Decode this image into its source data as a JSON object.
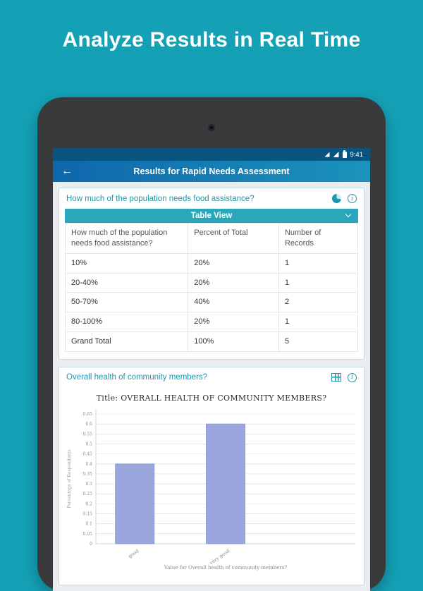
{
  "hero": {
    "title": "Analyze Results in Real Time"
  },
  "status_bar": {
    "time": "9:41"
  },
  "app_bar": {
    "title": "Results for Rapid Needs Assessment",
    "back_icon": "←"
  },
  "icons": {
    "info": "i"
  },
  "question1": {
    "text": "How much of the population needs food assistance?",
    "view_selector": {
      "label": "Table View"
    },
    "table": {
      "headers": [
        "How much of the population needs food assistance?",
        "Percent of Total",
        "Number of Records"
      ],
      "rows": [
        [
          "10%",
          "20%",
          "1"
        ],
        [
          "20-40%",
          "20%",
          "1"
        ],
        [
          "50-70%",
          "40%",
          "2"
        ],
        [
          "80-100%",
          "20%",
          "1"
        ],
        [
          "Grand Total",
          "100%",
          "5"
        ]
      ]
    }
  },
  "question2": {
    "text": "Overall health of community members?"
  },
  "chart_data": {
    "type": "bar",
    "title": "Title: OVERALL HEALTH OF COMMUNITY MEMBERS?",
    "categories": [
      "good",
      "very good"
    ],
    "values": [
      0.4,
      0.6
    ],
    "ylabel": "Percentage of Respondents",
    "xlabel": "Value for Overall health of community members?",
    "ylim": [
      0,
      0.65
    ],
    "ytick_step": 0.05,
    "grid": true,
    "legend": false,
    "bar_fill": "#9BA6DD",
    "bar_stroke": "#8390CF"
  },
  "colors": {
    "page_teal": "#14A1B6",
    "accent_teal": "#1B98AC",
    "view_bar_teal": "#2BA7BC",
    "appbar_blue_left": "#0E67AC",
    "appbar_blue_right": "#1C93BC",
    "statusbar_blue": "#0A5580",
    "bar_fill": "#9BA6DD"
  }
}
